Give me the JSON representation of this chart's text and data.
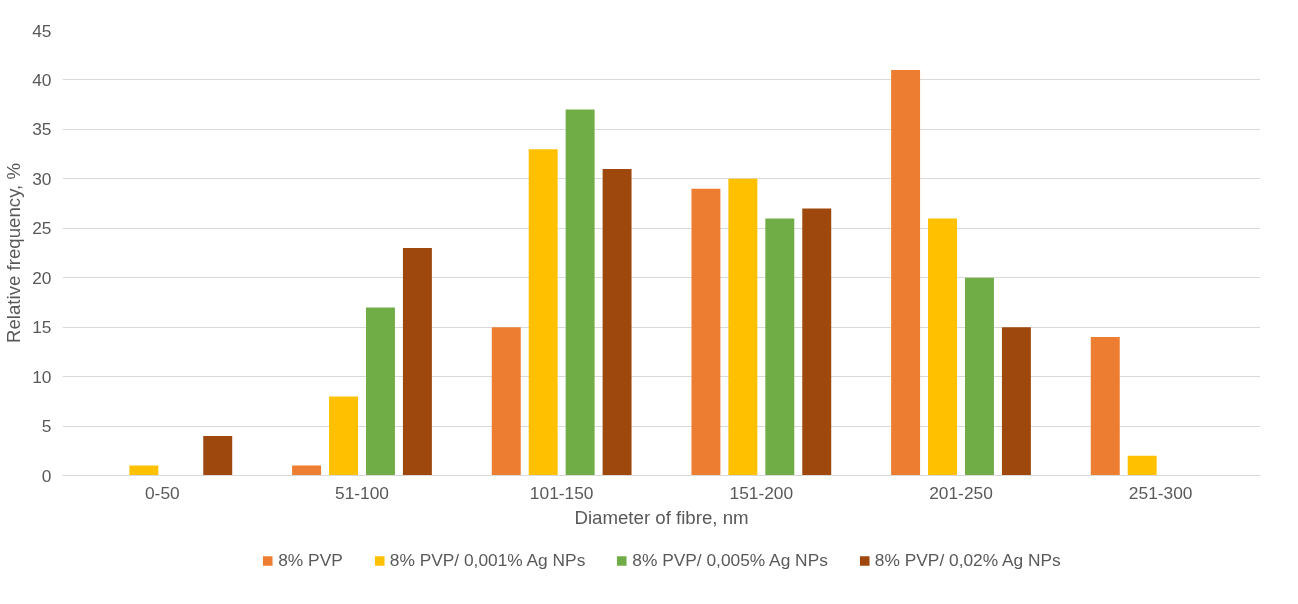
{
  "chart_data": {
    "type": "bar",
    "xlabel": "Diameter of fibre, nm",
    "ylabel": "Relative frequency, %",
    "categories": [
      "0-50",
      "51-100",
      "101-150",
      "151-200",
      "201-250",
      "251-300"
    ],
    "series": [
      {
        "name": "8% PVP",
        "color": "#ed7d31",
        "values": [
          0,
          1,
          15,
          29,
          41,
          14
        ]
      },
      {
        "name": "8% PVP/ 0,001% Ag NPs",
        "color": "#ffc000",
        "values": [
          1,
          8,
          33,
          30,
          26,
          2
        ]
      },
      {
        "name": "8% PVP/ 0,005% Ag NPs",
        "color": "#70ad47",
        "values": [
          0,
          17,
          37,
          26,
          20,
          0
        ]
      },
      {
        "name": "8% PVP/ 0,02% Ag NPs",
        "color": "#9e480e",
        "values": [
          4,
          23,
          31,
          27,
          15,
          0
        ]
      }
    ],
    "ylim": [
      0,
      45
    ],
    "yticks": [
      0,
      5,
      10,
      15,
      20,
      25,
      30,
      35,
      40,
      45
    ],
    "grid": "y",
    "legend": "bottom"
  }
}
